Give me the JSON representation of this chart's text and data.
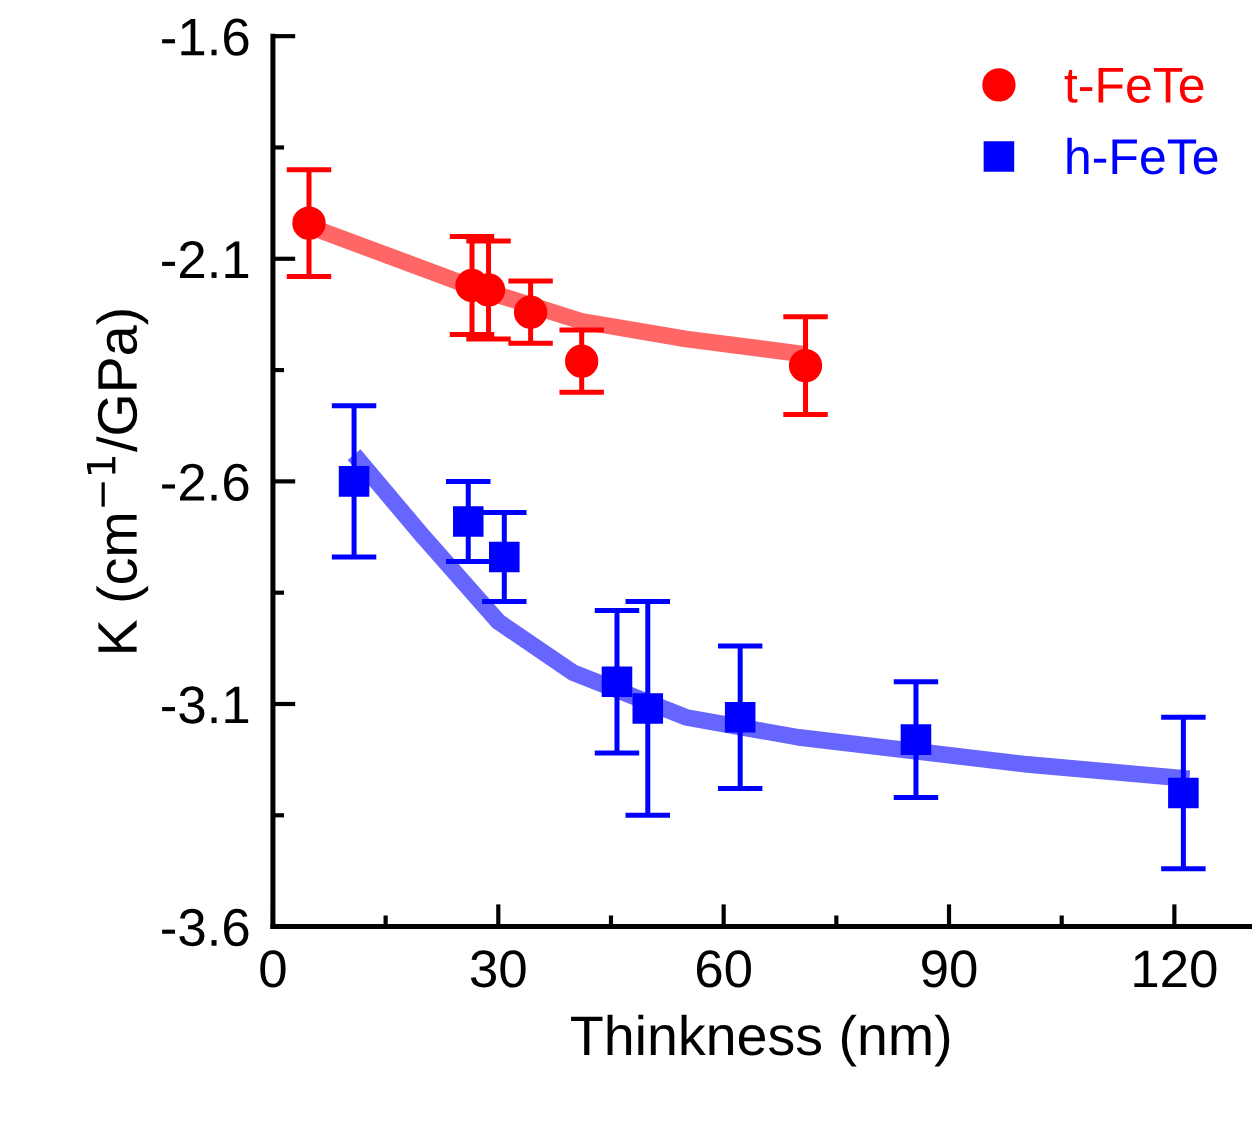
{
  "chart_data": {
    "type": "scatter",
    "xlabel": "Thinkness (nm)",
    "ylabel": "K (cm$^{−1}$/GPa)",
    "xlim": [
      0,
      130
    ],
    "xticks": [
      0,
      30,
      60,
      90,
      120
    ],
    "ylim": [
      -3.6,
      -1.6
    ],
    "yticks": [
      -3.6,
      -3.1,
      -2.6,
      -2.1,
      -1.6
    ],
    "grid": false,
    "legend": "top right",
    "series": [
      {
        "type": "line",
        "color": "#ff6666",
        "x": [
          4.8,
          26,
          41,
          55,
          71
        ],
        "values": [
          -2.027,
          -2.16,
          -2.24,
          -2.28,
          -2.315
        ]
      },
      {
        "type": "line",
        "color": "#6666ff",
        "x": [
          10.8,
          20,
          30,
          40,
          55,
          70,
          100,
          122
        ],
        "values": [
          -2.54,
          -2.724,
          -2.915,
          -3.03,
          -3.13,
          -3.175,
          -3.235,
          -3.268
        ]
      },
      {
        "name": "t-FeTe",
        "color": "#ff0000",
        "marker": "circle",
        "x": [
          4.8,
          26.5,
          28.7,
          34.3,
          41.1,
          70.9
        ],
        "values": [
          -2.02,
          -2.16,
          -2.17,
          -2.22,
          -2.33,
          -2.34
        ],
        "errors": [
          0.12,
          0.11,
          0.11,
          0.07,
          0.07,
          0.11
        ]
      },
      {
        "name": "h-FeTe",
        "color": "#0000ff",
        "marker": "square",
        "x": [
          10.8,
          26.0,
          30.8,
          45.8,
          49.9,
          62.2,
          85.6,
          121.2
        ],
        "values": [
          -2.6,
          -2.69,
          -2.77,
          -3.05,
          -3.11,
          -3.13,
          -3.18,
          -3.3
        ],
        "errors": [
          0.17,
          0.09,
          0.1,
          0.16,
          0.24,
          0.16,
          0.13,
          0.17
        ]
      }
    ]
  }
}
